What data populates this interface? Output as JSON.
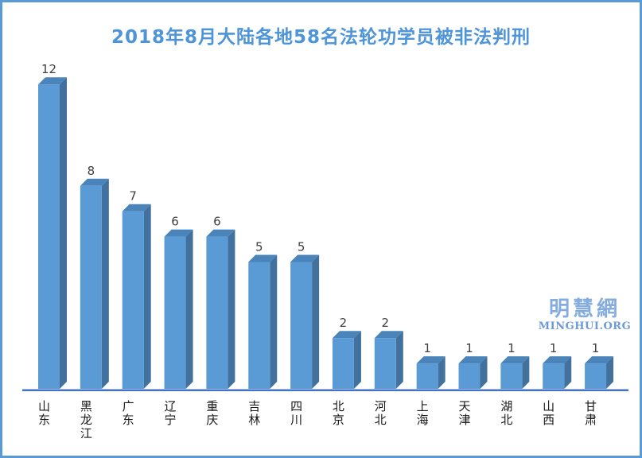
{
  "title": {
    "text": "2018年8月大陆各地58名法轮功学员被非法判刑",
    "color": "#4D94D8"
  },
  "watermark": {
    "logo_text": "明慧網",
    "site_text": "MINGHUI.ORG",
    "logo_color": "#85ACDF",
    "site_color": "#6E9AD4"
  },
  "frame": {
    "border_color": "#5B9BD5",
    "background": "#ffffff"
  },
  "chart_data": {
    "type": "bar",
    "style": "3d-column",
    "title": "2018年8月大陆各地58名法轮功学员被非法判刑",
    "categories": [
      "山东",
      "黑龙江",
      "广东",
      "辽宁",
      "重庆",
      "吉林",
      "四川",
      "北京",
      "河北",
      "上海",
      "天津",
      "湖北",
      "山西",
      "甘肃"
    ],
    "values": [
      12,
      8,
      7,
      6,
      6,
      5,
      5,
      2,
      2,
      1,
      1,
      1,
      1,
      1
    ],
    "total": 58,
    "xlabel": "",
    "ylabel": "",
    "ylim": [
      0,
      12
    ],
    "grid": false,
    "legend": false,
    "data_labels": true,
    "colors": {
      "bar_front": "#5B9BD5",
      "bar_top": "#4A84BA",
      "bar_side": "#41719C",
      "axis_line": "#4472C4",
      "value_label": "#404040",
      "category_label": "#1a1a1a"
    }
  }
}
